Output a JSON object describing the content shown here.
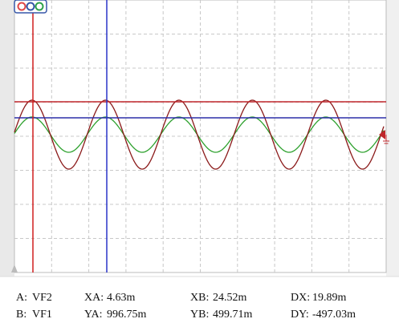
{
  "readout": {
    "rows": [
      [
        {
          "label": "A:",
          "value": "VF2"
        },
        {
          "label": "XA:",
          "value": "4.63m"
        },
        {
          "label": "XB:",
          "value": "24.52m"
        },
        {
          "label": "DX:",
          "value": "19.89m"
        }
      ],
      [
        {
          "label": "B:",
          "value": "VF1"
        },
        {
          "label": "YA:",
          "value": "996.75m"
        },
        {
          "label": "YB:",
          "value": "499.71m"
        },
        {
          "label": "DY:",
          "value": "-497.03m"
        }
      ]
    ]
  }
}
